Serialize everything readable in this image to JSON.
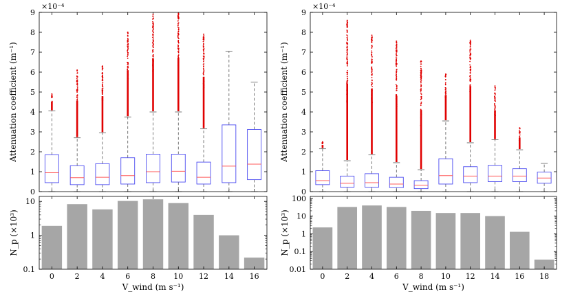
{
  "chart_data": [
    {
      "type": "box",
      "panel": "left-top",
      "ylabel": "Attenuation coefficient (m⁻¹)",
      "exponent_label": "×10⁻⁴",
      "ylim": [
        0,
        9
      ],
      "yticks": [
        0,
        1,
        2,
        3,
        4,
        5,
        6,
        7,
        8,
        9
      ],
      "x": [
        0,
        2,
        4,
        6,
        8,
        10,
        12,
        14,
        16
      ],
      "boxes": [
        {
          "q1": 0.45,
          "median": 0.95,
          "q3": 1.85,
          "whisker_low": 0.0,
          "whisker_high": 4.05,
          "outlier_max": 4.9
        },
        {
          "q1": 0.35,
          "median": 0.7,
          "q3": 1.3,
          "whisker_low": 0.0,
          "whisker_high": 2.7,
          "outlier_max": 6.1
        },
        {
          "q1": 0.35,
          "median": 0.72,
          "q3": 1.4,
          "whisker_low": 0.0,
          "whisker_high": 2.95,
          "outlier_max": 6.3
        },
        {
          "q1": 0.38,
          "median": 0.8,
          "q3": 1.7,
          "whisker_low": 0.0,
          "whisker_high": 3.75,
          "outlier_max": 8.0
        },
        {
          "q1": 0.45,
          "median": 1.0,
          "q3": 1.88,
          "whisker_low": 0.0,
          "whisker_high": 4.0,
          "outlier_max": 8.9
        },
        {
          "q1": 0.48,
          "median": 1.02,
          "q3": 1.88,
          "whisker_low": 0.0,
          "whisker_high": 4.0,
          "outlier_max": 8.95
        },
        {
          "q1": 0.38,
          "median": 0.72,
          "q3": 1.48,
          "whisker_low": 0.0,
          "whisker_high": 3.15,
          "outlier_max": 7.9
        },
        {
          "q1": 0.45,
          "median": 1.28,
          "q3": 3.35,
          "whisker_low": 0.0,
          "whisker_high": 7.05,
          "outlier_max": null
        },
        {
          "q1": 0.6,
          "median": 1.38,
          "q3": 3.12,
          "whisker_low": 0.0,
          "whisker_high": 5.5,
          "outlier_max": null
        }
      ]
    },
    {
      "type": "bar",
      "panel": "left-bottom",
      "ylabel": "N_p (×10³)",
      "yscale": "log",
      "ylim": [
        0.1,
        14
      ],
      "yticks": [
        0.1,
        1,
        10
      ],
      "yticklabels": [
        "0.1",
        "1",
        "10"
      ],
      "xlabel": "V_wind (m s⁻¹)",
      "categories": [
        0,
        2,
        4,
        6,
        8,
        10,
        12,
        14,
        16
      ],
      "values": [
        1.9,
        8.3,
        5.8,
        10.3,
        11.5,
        8.9,
        4.0,
        1.0,
        0.22
      ]
    },
    {
      "type": "box",
      "panel": "right-top",
      "ylabel": "Attenuation coefficient (m⁻¹)",
      "exponent_label": "×10⁻⁴",
      "ylim": [
        0,
        9
      ],
      "yticks": [
        0,
        1,
        2,
        3,
        4,
        5,
        6,
        7,
        8,
        9
      ],
      "x": [
        0,
        2,
        4,
        6,
        8,
        10,
        12,
        14,
        16,
        18
      ],
      "boxes": [
        {
          "q1": 0.35,
          "median": 0.55,
          "q3": 1.05,
          "whisker_low": 0.0,
          "whisker_high": 2.15,
          "outlier_max": 2.5
        },
        {
          "q1": 0.22,
          "median": 0.42,
          "q3": 0.78,
          "whisker_low": 0.0,
          "whisker_high": 1.55,
          "outlier_max": 8.6
        },
        {
          "q1": 0.22,
          "median": 0.45,
          "q3": 0.9,
          "whisker_low": 0.0,
          "whisker_high": 1.85,
          "outlier_max": 7.85
        },
        {
          "q1": 0.2,
          "median": 0.38,
          "q3": 0.72,
          "whisker_low": 0.0,
          "whisker_high": 1.45,
          "outlier_max": 7.55
        },
        {
          "q1": 0.15,
          "median": 0.32,
          "q3": 0.55,
          "whisker_low": 0.0,
          "whisker_high": 1.1,
          "outlier_max": 6.55
        },
        {
          "q1": 0.38,
          "median": 0.8,
          "q3": 1.65,
          "whisker_low": 0.0,
          "whisker_high": 3.55,
          "outlier_max": 5.9
        },
        {
          "q1": 0.45,
          "median": 0.78,
          "q3": 1.25,
          "whisker_low": 0.0,
          "whisker_high": 2.45,
          "outlier_max": 7.6
        },
        {
          "q1": 0.5,
          "median": 0.78,
          "q3": 1.32,
          "whisker_low": 0.0,
          "whisker_high": 2.6,
          "outlier_max": 5.3
        },
        {
          "q1": 0.5,
          "median": 0.78,
          "q3": 1.15,
          "whisker_low": 0.0,
          "whisker_high": 2.1,
          "outlier_max": 3.2
        },
        {
          "q1": 0.42,
          "median": 0.68,
          "q3": 0.98,
          "whisker_low": 0.0,
          "whisker_high": 1.42,
          "outlier_max": null
        }
      ]
    },
    {
      "type": "bar",
      "panel": "right-bottom",
      "ylabel": "N_p (×10³)",
      "yscale": "log",
      "ylim": [
        0.01,
        130
      ],
      "yticks": [
        0.01,
        0.1,
        1,
        10,
        100
      ],
      "yticklabels": [
        "0.01",
        "0.1",
        "1",
        "10",
        "100"
      ],
      "xlabel": "V_wind (m s⁻¹)",
      "categories": [
        0,
        2,
        4,
        6,
        8,
        10,
        12,
        14,
        16,
        18
      ],
      "values": [
        2.3,
        33,
        40,
        33,
        20,
        15,
        15,
        10,
        1.3,
        0.035
      ]
    }
  ],
  "colors": {
    "box": "#4a4af0",
    "median": "#ff5a5a",
    "outlier": "#e00000",
    "bar": "#a6a6a6",
    "whisker": "#555555",
    "axis": "#000000"
  }
}
